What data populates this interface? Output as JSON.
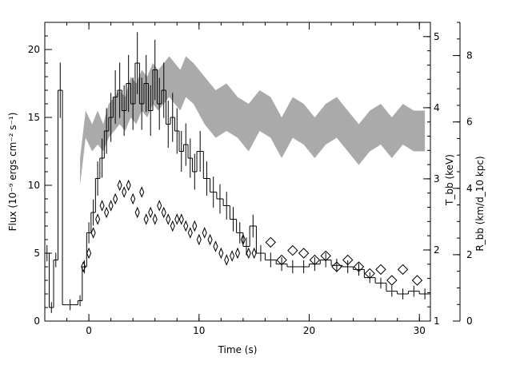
{
  "chart_data": {
    "type": "line",
    "title": "",
    "xlabel": "Time (s)",
    "ylabel": "Flux (10⁻⁹ ergs cm⁻² s⁻¹)",
    "ylabel_right_1": "T_bb (keV)",
    "ylabel_right_2": "R_bb (km/d_10 kpc)",
    "xlim": [
      -4,
      31
    ],
    "ylim": [
      0,
      22
    ],
    "x_ticks": [
      0,
      10,
      20,
      30
    ],
    "y_ticks": [
      0,
      5,
      10,
      15,
      20
    ],
    "right_axis_1": {
      "ticks": [
        1,
        2,
        3,
        4,
        5
      ],
      "range": [
        1,
        5.2
      ]
    },
    "right_axis_2": {
      "ticks": [
        0,
        2,
        4,
        6,
        8
      ],
      "range": [
        0,
        9
      ]
    },
    "grid": false,
    "series": [
      {
        "style": "histogram",
        "x": [
          -4.0,
          -3.6,
          -3.2,
          -2.8,
          -2.4,
          -1.0,
          -0.6,
          -0.2,
          0.2,
          0.6,
          1.0,
          1.4,
          1.8,
          2.2,
          2.6,
          3.0,
          3.4,
          3.8,
          4.2,
          4.6,
          5.0,
          5.4,
          5.8,
          6.2,
          6.6,
          7.0,
          7.4,
          7.8,
          8.2,
          8.6,
          9.0,
          9.4,
          9.8,
          10.4,
          11.0,
          11.6,
          12.2,
          12.8,
          13.4,
          14.0,
          14.6,
          15.2,
          16.0,
          17.0,
          18.0,
          19.0,
          20.0,
          21.0,
          22.0,
          23.0,
          24.0,
          25.0,
          26.0,
          27.0,
          28.0,
          29.0,
          30.0
        ],
        "values": [
          5.0,
          1.0,
          4.5,
          17.0,
          1.2,
          1.5,
          4.0,
          6.5,
          8.0,
          10.5,
          12.0,
          14.0,
          15.0,
          16.5,
          17.0,
          15.5,
          17.5,
          16.0,
          19.0,
          16.0,
          17.5,
          15.5,
          18.5,
          16.0,
          17.0,
          14.5,
          15.0,
          14.0,
          12.5,
          13.0,
          12.0,
          11.0,
          12.5,
          10.5,
          9.5,
          9.0,
          8.5,
          7.5,
          6.5,
          5.5,
          7.0,
          5.0,
          4.5,
          4.2,
          4.0,
          4.0,
          4.2,
          4.5,
          4.1,
          4.0,
          3.8,
          3.2,
          2.8,
          2.2,
          2.0,
          2.2,
          2.0
        ]
      },
      {
        "style": "diamond",
        "x": [
          -0.5,
          0.0,
          0.4,
          0.8,
          1.2,
          1.6,
          2.0,
          2.4,
          2.8,
          3.2,
          3.6,
          4.0,
          4.4,
          4.8,
          5.2,
          5.6,
          6.0,
          6.4,
          6.8,
          7.2,
          7.6,
          8.0,
          8.4,
          8.8,
          9.2,
          9.6,
          10.0,
          10.5,
          11.0,
          11.5,
          12.0,
          12.5,
          13.0,
          13.5,
          14.0,
          14.5,
          15.0,
          16.5,
          17.5,
          18.5,
          19.5,
          20.5,
          21.5,
          22.5,
          23.5,
          24.5,
          25.5,
          26.5,
          27.5,
          28.5,
          29.8
        ],
        "values": [
          4.0,
          5.0,
          6.5,
          7.5,
          8.5,
          8.0,
          8.5,
          9.0,
          10.0,
          9.5,
          10.0,
          9.0,
          8.0,
          9.5,
          7.5,
          8.0,
          7.5,
          8.5,
          8.0,
          7.5,
          7.0,
          7.5,
          7.5,
          7.0,
          6.5,
          7.0,
          6.0,
          6.5,
          6.0,
          5.5,
          5.0,
          4.5,
          4.8,
          5.0,
          6.0,
          5.0,
          5.0,
          5.8,
          4.5,
          5.2,
          5.0,
          4.5,
          4.8,
          4.0,
          4.5,
          4.0,
          3.5,
          3.8,
          3.0,
          3.8,
          3.0
        ]
      },
      {
        "style": "band",
        "x": [
          -0.8,
          -0.3,
          0.3,
          0.8,
          1.3,
          1.8,
          2.3,
          2.8,
          3.3,
          3.8,
          4.3,
          4.8,
          5.3,
          5.8,
          6.3,
          6.8,
          7.3,
          7.8,
          8.3,
          8.8,
          9.5,
          10.5,
          11.5,
          12.5,
          13.5,
          14.5,
          15.5,
          16.5,
          17.5,
          18.5,
          19.5,
          20.5,
          21.5,
          22.5,
          23.5,
          24.5,
          25.5,
          26.5,
          27.5,
          28.5,
          29.5,
          30.5
        ],
        "low": [
          10.0,
          13.5,
          12.5,
          13.0,
          12.5,
          13.5,
          14.0,
          14.5,
          14.0,
          15.0,
          14.5,
          15.5,
          15.0,
          16.0,
          15.5,
          16.0,
          16.5,
          16.0,
          15.5,
          16.5,
          16.0,
          14.5,
          13.5,
          14.0,
          13.5,
          12.5,
          14.0,
          13.5,
          12.0,
          13.5,
          13.0,
          12.0,
          13.0,
          13.5,
          12.5,
          11.5,
          12.5,
          13.0,
          12.0,
          13.0,
          12.5,
          12.5
        ],
        "high": [
          12.0,
          15.5,
          14.5,
          15.5,
          14.5,
          16.0,
          16.5,
          17.0,
          16.5,
          18.0,
          17.5,
          18.5,
          18.0,
          19.0,
          18.5,
          19.0,
          19.5,
          19.0,
          18.5,
          19.5,
          19.0,
          18.0,
          17.0,
          17.5,
          16.5,
          16.0,
          17.0,
          16.5,
          15.0,
          16.5,
          16.0,
          15.0,
          16.0,
          16.5,
          15.5,
          14.5,
          15.5,
          16.0,
          15.0,
          16.0,
          15.5,
          15.5
        ]
      }
    ]
  }
}
